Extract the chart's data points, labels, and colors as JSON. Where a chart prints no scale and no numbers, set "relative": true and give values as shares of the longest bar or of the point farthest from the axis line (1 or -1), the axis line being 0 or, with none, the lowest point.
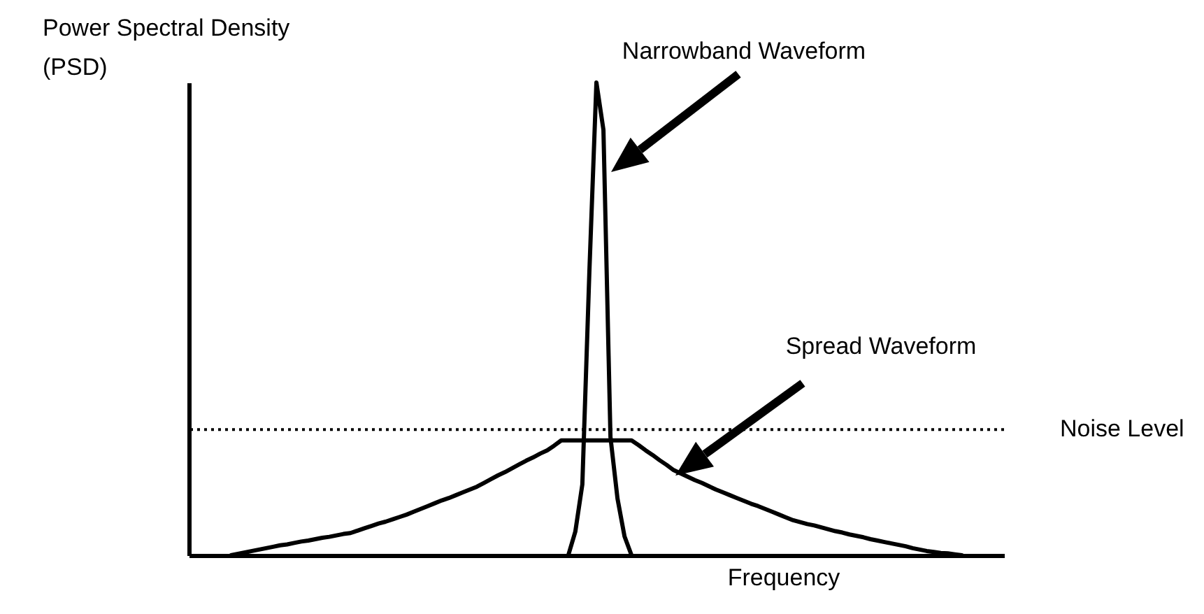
{
  "chart_data": {
    "type": "line",
    "relative": true,
    "xlabel": "Frequency",
    "ylabel": "Power Spectral Density (PSD)",
    "categories": [
      null,
      null,
      null,
      null,
      null,
      null,
      null,
      null,
      null,
      null,
      null,
      null,
      null,
      null,
      null,
      null,
      null,
      null,
      null,
      null,
      null,
      null,
      null,
      null,
      null,
      null,
      null,
      null,
      null,
      null,
      null,
      null,
      null,
      null,
      null,
      null,
      null,
      null,
      null,
      null,
      null,
      null,
      null,
      null,
      null,
      null,
      null,
      null,
      null,
      null,
      null,
      null,
      null,
      null,
      null,
      null,
      null,
      null,
      null,
      null,
      null,
      null,
      null,
      null,
      null,
      null,
      null,
      null,
      null,
      null,
      null,
      null,
      null,
      null,
      null,
      null,
      null,
      null,
      null,
      null,
      null,
      null,
      null,
      null,
      null,
      null,
      null,
      null,
      null,
      null,
      null,
      null,
      null,
      null,
      null,
      null,
      null,
      null,
      null,
      null,
      null,
      null,
      null,
      null,
      null,
      null,
      null,
      null,
      null,
      null,
      null,
      null,
      null,
      null,
      null,
      null,
      null
    ],
    "series": [
      {
        "name": "Narrowband Waveform",
        "color": "#000000",
        "values": [
          null,
          null,
          null,
          null,
          null,
          null,
          null,
          null,
          null,
          null,
          null,
          null,
          null,
          null,
          null,
          null,
          null,
          null,
          null,
          null,
          null,
          null,
          null,
          null,
          null,
          null,
          null,
          null,
          null,
          null,
          null,
          null,
          null,
          null,
          null,
          null,
          null,
          null,
          null,
          null,
          null,
          null,
          null,
          null,
          null,
          null,
          null,
          null,
          null,
          null,
          null,
          null,
          null,
          null,
          0,
          0.05,
          0.15,
          0.6,
          1,
          0.9,
          0.25,
          0.12,
          0.04,
          0,
          null,
          null,
          null,
          null,
          null,
          null,
          null,
          null,
          null,
          null,
          null,
          null,
          null,
          null,
          null,
          null,
          null,
          null,
          null,
          null,
          null,
          null,
          null,
          null,
          null,
          null,
          null,
          null,
          null,
          null,
          null,
          null,
          null,
          null,
          null,
          null,
          null,
          null,
          null,
          null,
          null,
          null,
          null,
          null,
          null,
          null,
          null,
          null,
          null,
          null,
          null,
          null,
          null
        ]
      },
      {
        "name": "Spread Waveform",
        "color": "#000000",
        "values": [
          null,
          null,
          null,
          null,
          null,
          null,
          0,
          0.003,
          0.006,
          0.009,
          0.012,
          0.015,
          0.018,
          0.021,
          0.023,
          0.026,
          0.029,
          0.031,
          0.034,
          0.037,
          0.039,
          0.042,
          0.045,
          0.047,
          0.052,
          0.057,
          0.062,
          0.067,
          0.071,
          0.076,
          0.081,
          0.086,
          0.092,
          0.098,
          0.104,
          0.11,
          0.116,
          0.121,
          0.127,
          0.133,
          0.139,
          0.145,
          0.153,
          0.161,
          0.169,
          0.176,
          0.184,
          0.192,
          0.2,
          0.207,
          0.215,
          0.222,
          0.232,
          0.243,
          0.243,
          0.243,
          0.243,
          0.243,
          0.243,
          0.243,
          0.243,
          0.243,
          0.243,
          0.243,
          0.233,
          0.222,
          0.212,
          0.201,
          0.191,
          0.18,
          0.173,
          0.166,
          0.159,
          0.153,
          0.146,
          0.139,
          0.133,
          0.127,
          0.121,
          0.115,
          0.109,
          0.104,
          0.098,
          0.092,
          0.086,
          0.08,
          0.074,
          0.07,
          0.066,
          0.063,
          0.059,
          0.055,
          0.051,
          0.048,
          0.044,
          0.041,
          0.038,
          0.034,
          0.031,
          0.028,
          0.025,
          0.022,
          0.019,
          0.015,
          0.012,
          0.009,
          0.007,
          0.005,
          0.004,
          0.002,
          0,
          null,
          null,
          null,
          null,
          null,
          null
        ]
      }
    ],
    "ref_lines": [
      {
        "axis": "y",
        "value": 0.266,
        "label": "Noise Level",
        "color": "#000000",
        "line_style": "dotted"
      }
    ],
    "grid": false,
    "marker": "none",
    "line_style": "solid"
  }
}
